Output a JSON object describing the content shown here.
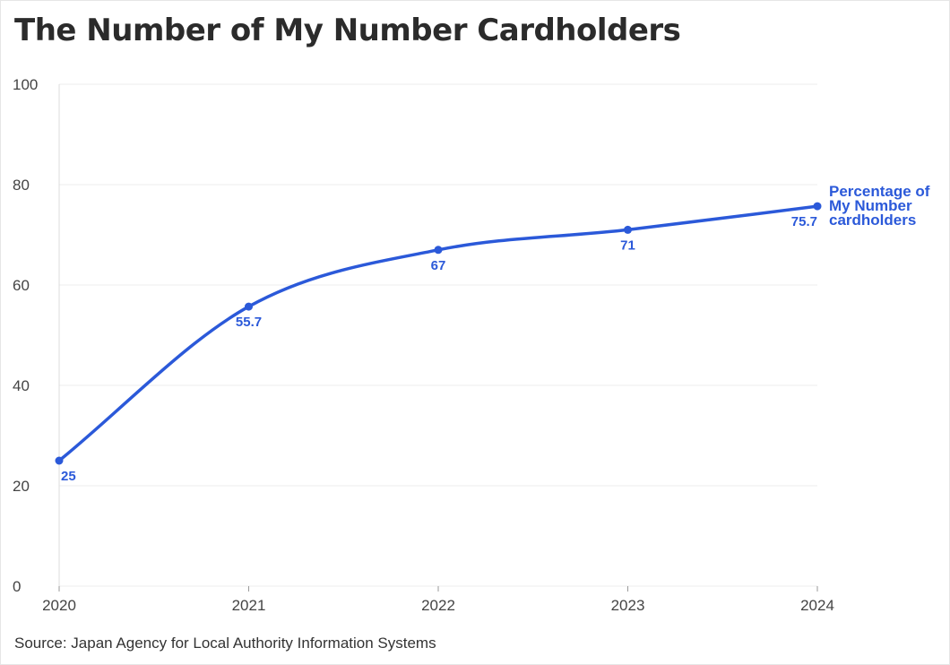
{
  "title": "The Number of My Number Cardholders",
  "source": "Source: Japan Agency for Local Authority Information Systems",
  "colors": {
    "series": "#2b59d9",
    "text": "#2b2b2b"
  },
  "chart_data": {
    "type": "line",
    "x": [
      "2020",
      "2021",
      "2022",
      "2023",
      "2024"
    ],
    "series": [
      {
        "name": "Percentage of My Number cardholders",
        "label_lines": [
          "Percentage of",
          "My Number",
          "cardholders"
        ],
        "values": [
          25,
          55.7,
          67,
          71,
          75.7
        ],
        "data_labels": [
          "25",
          "55.7",
          "67",
          "71",
          "75.7"
        ]
      }
    ],
    "ylim": [
      0,
      100
    ],
    "yticks": [
      0,
      20,
      40,
      60,
      80,
      100
    ],
    "grid": true,
    "legend": "inline-right"
  }
}
